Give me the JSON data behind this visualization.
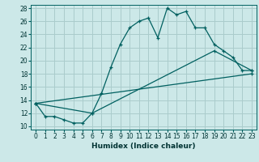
{
  "xlabel": "Humidex (Indice chaleur)",
  "bg_color": "#cce8e8",
  "grid_color": "#aacccc",
  "line_color": "#006060",
  "xlim": [
    -0.5,
    23.5
  ],
  "ylim": [
    9.5,
    28.5
  ],
  "xticks": [
    0,
    1,
    2,
    3,
    4,
    5,
    6,
    7,
    8,
    9,
    10,
    11,
    12,
    13,
    14,
    15,
    16,
    17,
    18,
    19,
    20,
    21,
    22,
    23
  ],
  "yticks": [
    10,
    12,
    14,
    16,
    18,
    20,
    22,
    24,
    26,
    28
  ],
  "line1_x": [
    0,
    1,
    2,
    3,
    4,
    5,
    6,
    7,
    8,
    9,
    10,
    11,
    12,
    13,
    14,
    15,
    16,
    17,
    18,
    19,
    20,
    21,
    22,
    23
  ],
  "line1_y": [
    13.5,
    11.5,
    11.5,
    11.0,
    10.5,
    10.5,
    12.0,
    15.0,
    19.0,
    22.5,
    25.0,
    26.0,
    26.5,
    23.5,
    28.0,
    27.0,
    27.5,
    25.0,
    25.0,
    22.5,
    21.5,
    20.5,
    18.5,
    18.5
  ],
  "line2_x": [
    0,
    6,
    19,
    23
  ],
  "line2_y": [
    13.5,
    12.0,
    21.5,
    18.5
  ],
  "line3_x": [
    0,
    23
  ],
  "line3_y": [
    13.5,
    18.0
  ]
}
